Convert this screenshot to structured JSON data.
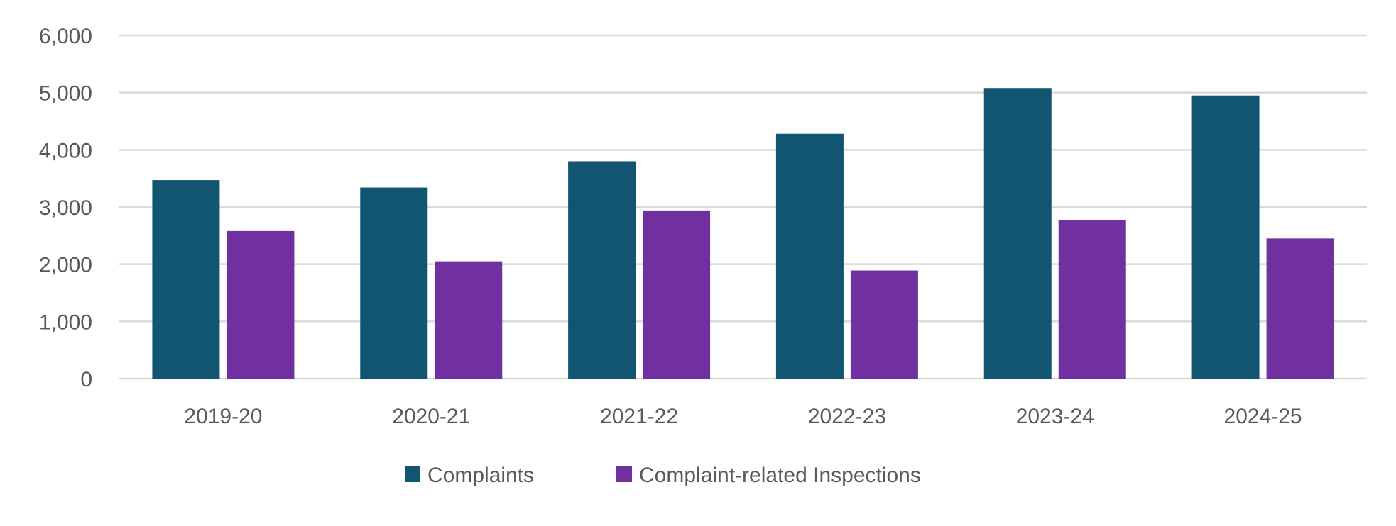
{
  "chart_data": {
    "type": "bar",
    "title": "",
    "xlabel": "",
    "ylabel": "",
    "categories": [
      "2019-20",
      "2020-21",
      "2021-22",
      "2022-23",
      "2023-24",
      "2024-25"
    ],
    "series": [
      {
        "name": "Complaints",
        "color": "#125571",
        "values": [
          3470,
          3340,
          3800,
          4280,
          5080,
          4950
        ]
      },
      {
        "name": "Complaint-related Inspections",
        "color": "#7030A0",
        "values": [
          2580,
          2050,
          2940,
          1890,
          2770,
          2450
        ]
      }
    ],
    "ylim": [
      0,
      6000
    ],
    "yticks": [
      "0",
      "1,000",
      "2,000",
      "3,000",
      "4,000",
      "5,000",
      "6,000"
    ],
    "ytick_values": [
      0,
      1000,
      2000,
      3000,
      4000,
      5000,
      6000
    ],
    "grid": true,
    "legend_position": "bottom"
  }
}
